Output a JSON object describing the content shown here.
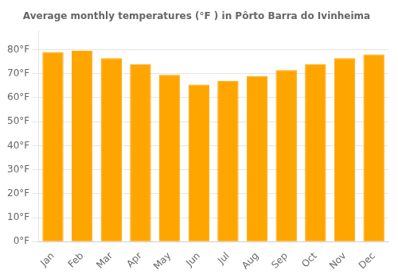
{
  "chart_data": {
    "type": "bar",
    "title": "Average monthly temperatures (°F ) in Pôrto Barra do Ivinheima",
    "categories": [
      "Jan",
      "Feb",
      "Mar",
      "Apr",
      "May",
      "Jun",
      "Jul",
      "Aug",
      "Sep",
      "Oct",
      "Nov",
      "Dec"
    ],
    "values": [
      79,
      79.5,
      76.5,
      74,
      69.5,
      65.5,
      67,
      69,
      71.5,
      74,
      76.5,
      78
    ],
    "color": "#FFA500",
    "ylim": [
      0,
      88
    ],
    "yticks": [
      {
        "value": 0,
        "label": "0°F"
      },
      {
        "value": 10,
        "label": "10°F"
      },
      {
        "value": 20,
        "label": "20°F"
      },
      {
        "value": 30,
        "label": "30°F"
      },
      {
        "value": 40,
        "label": "40°F"
      },
      {
        "value": 50,
        "label": "50°F"
      },
      {
        "value": 60,
        "label": "60°F"
      },
      {
        "value": 70,
        "label": "70°F"
      },
      {
        "value": 80,
        "label": "80°F"
      }
    ],
    "grid": true
  }
}
